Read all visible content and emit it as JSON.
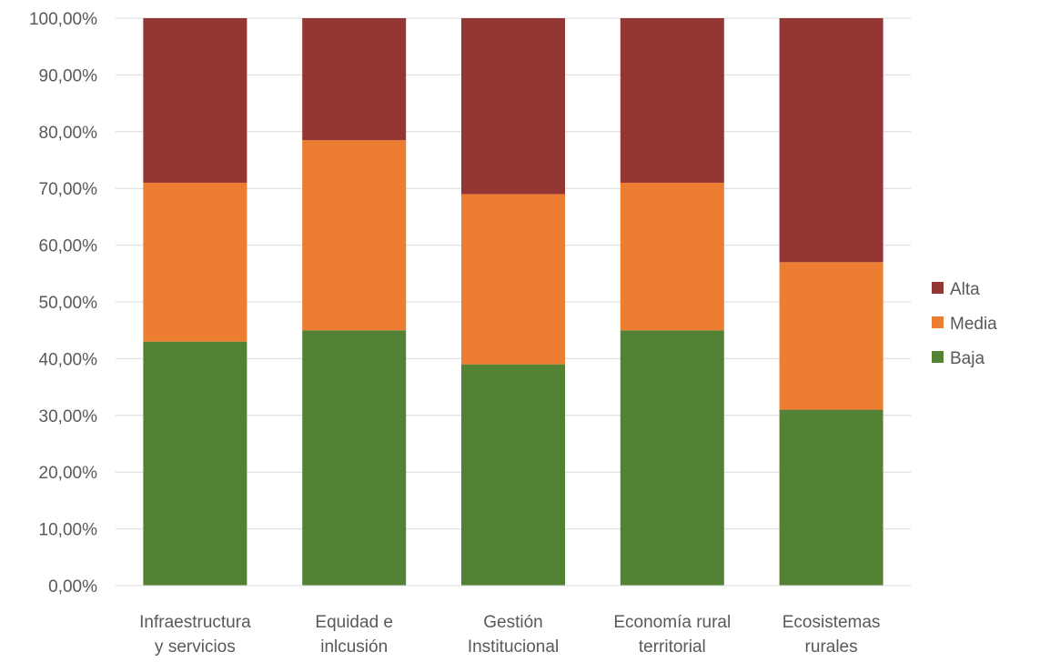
{
  "chart_data": {
    "type": "bar",
    "stacked": true,
    "categories": [
      [
        "Infraestructura",
        "y servicios"
      ],
      [
        "Equidad e",
        "inlcusión"
      ],
      [
        "Gestión",
        "Institucional"
      ],
      [
        "Economía rural",
        "territorial"
      ],
      [
        "Ecosistemas",
        "rurales"
      ]
    ],
    "series": [
      {
        "name": "Baja",
        "color": "#548235",
        "values": [
          43,
          45,
          39,
          45,
          31
        ]
      },
      {
        "name": "Media",
        "color": "#ED7D31",
        "values": [
          28,
          33.5,
          30,
          26,
          26
        ]
      },
      {
        "name": "Alta",
        "color": "#943634",
        "values": [
          29,
          21.5,
          31,
          29,
          43
        ]
      }
    ],
    "y_ticks": [
      "0,00%",
      "10,00%",
      "20,00%",
      "30,00%",
      "40,00%",
      "50,00%",
      "60,00%",
      "70,00%",
      "80,00%",
      "90,00%",
      "100,00%"
    ],
    "ylim": [
      0,
      100
    ],
    "grid": true,
    "legend": {
      "placement": "right",
      "order": [
        "Alta",
        "Media",
        "Baja"
      ]
    },
    "title": "",
    "xlabel": "",
    "ylabel": ""
  }
}
